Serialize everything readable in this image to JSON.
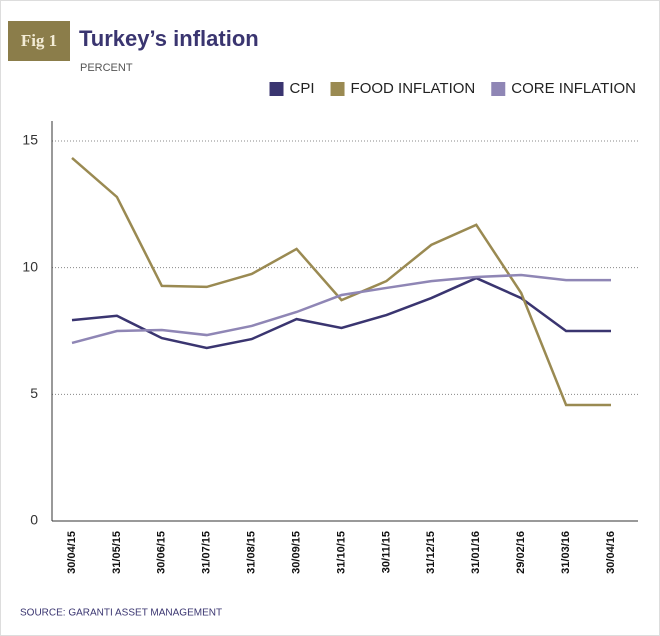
{
  "fig_label": "Fig 1",
  "chart_data": {
    "type": "line",
    "title": "Turkey’s inflation",
    "subtitle": "PERCENT",
    "source": "SOURCE: GARANTI ASSET MANAGEMENT",
    "categories": [
      "30/04/15",
      "31/05/15",
      "30/06/15",
      "31/07/15",
      "31/08/15",
      "30/09/15",
      "31/10/15",
      "30/11/15",
      "31/12/15",
      "31/01/16",
      "29/02/16",
      "31/03/16",
      "30/04/16"
    ],
    "series": [
      {
        "name": "CPI",
        "color": "#3a3570",
        "values": [
          7.93,
          8.1,
          7.22,
          6.83,
          7.18,
          7.97,
          7.62,
          8.13,
          8.8,
          9.59,
          8.8,
          7.5,
          7.5
        ]
      },
      {
        "name": "FOOD INFLATION",
        "color": "#9a8a52",
        "values": [
          14.33,
          12.79,
          9.28,
          9.24,
          9.75,
          10.74,
          8.72,
          9.47,
          10.9,
          11.69,
          9.0,
          4.58,
          4.58
        ]
      },
      {
        "name": "CORE INFLATION",
        "color": "#8f86b5",
        "values": [
          7.03,
          7.5,
          7.54,
          7.34,
          7.7,
          8.25,
          8.92,
          9.2,
          9.47,
          9.63,
          9.71,
          9.51,
          9.51
        ]
      }
    ],
    "ylim": [
      0,
      15
    ],
    "yticks": [
      0,
      5,
      10,
      15
    ],
    "grid": true,
    "legend": "top-right"
  }
}
